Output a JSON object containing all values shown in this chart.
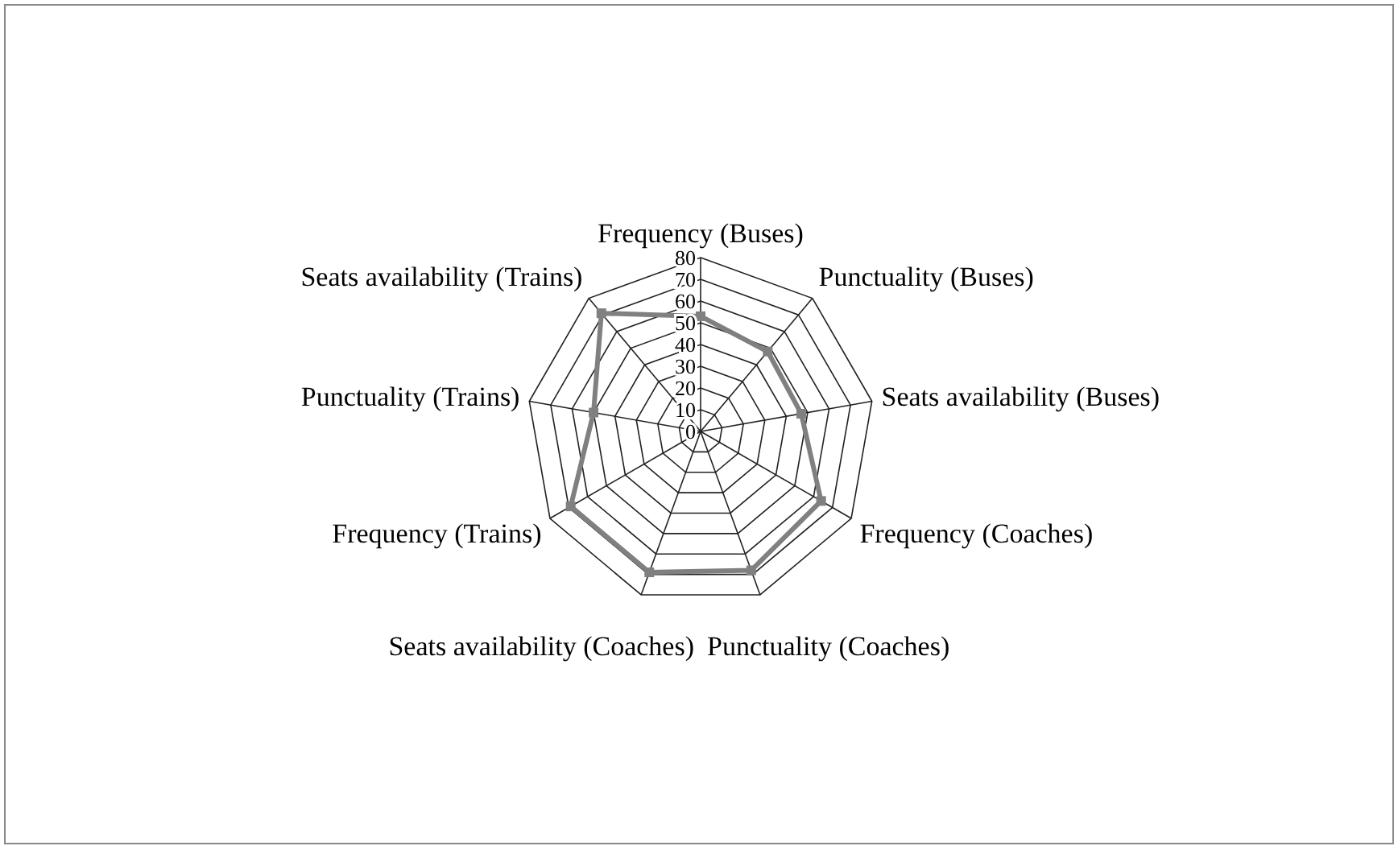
{
  "chart_data": {
    "type": "radar",
    "categories": [
      "Frequency (Buses)",
      "Punctuality (Buses)",
      "Seats availability (Buses)",
      "Frequency (Coaches)",
      "Punctuality (Coaches)",
      "Seats availability (Coaches)",
      "Frequency (Trains)",
      "Punctuality (Trains)",
      "Seats availability (Trains)"
    ],
    "series": [
      {
        "color": "#808080",
        "values": [
          53,
          48,
          47,
          64,
          68,
          69,
          69,
          50,
          71
        ]
      }
    ],
    "ylim": [
      0,
      80
    ],
    "yticks": [
      0,
      10,
      20,
      30,
      40,
      50,
      60,
      70,
      80
    ],
    "grid": true,
    "marker": "square",
    "line_style": "solid"
  }
}
